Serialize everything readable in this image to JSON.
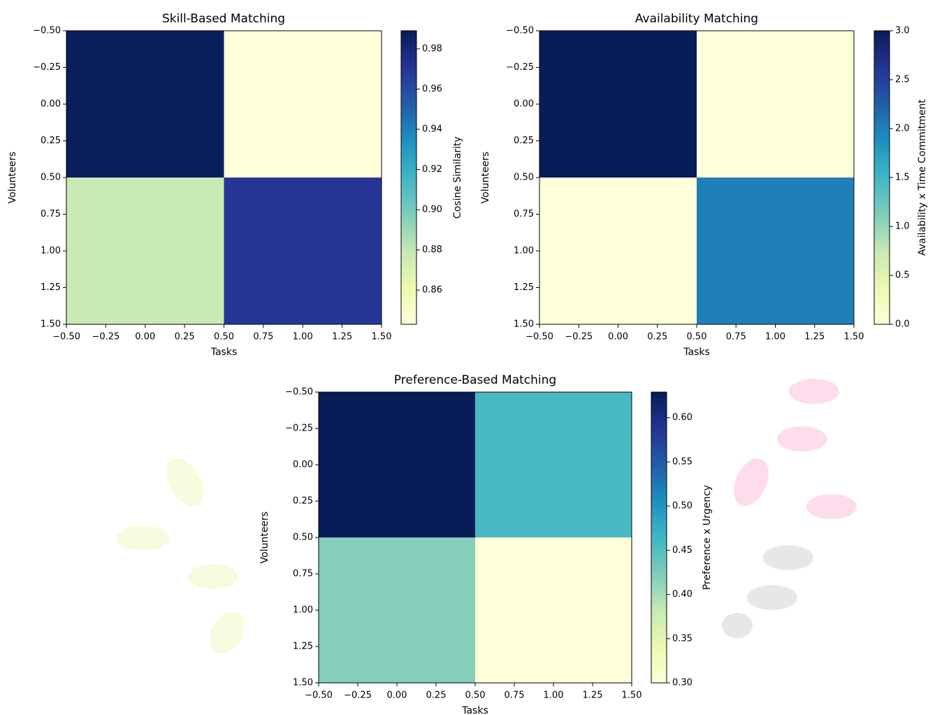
{
  "chart_data": [
    {
      "type": "heatmap",
      "title": "Skill-Based Matching",
      "xlabel": "Tasks",
      "ylabel": "Volunteers",
      "colorbar_label": "Cosine Similarity",
      "cmap": "YlGnBu",
      "z": [
        [
          0.988,
          0.843
        ],
        [
          0.878,
          0.97
        ]
      ],
      "clim": [
        0.843,
        0.989
      ],
      "xlim": [
        -0.5,
        1.5
      ],
      "ylim": [
        1.5,
        -0.5
      ],
      "xticks": [
        {
          "value": -0.5,
          "label": "−0.50"
        },
        {
          "value": -0.25,
          "label": "−0.25"
        },
        {
          "value": 0,
          "label": "0.00"
        },
        0.25,
        {
          "value": 0.5,
          "label": "0.50"
        },
        0.75,
        {
          "value": 1,
          "label": "1.00"
        },
        1.25,
        {
          "value": 1.5,
          "label": "1.50"
        }
      ],
      "yticks": [
        {
          "value": -0.5,
          "label": "−0.50"
        },
        {
          "value": -0.25,
          "label": "−0.25"
        },
        {
          "value": 0,
          "label": "0.00"
        },
        0.25,
        {
          "value": 0.5,
          "label": "0.50"
        },
        0.75,
        {
          "value": 1,
          "label": "1.00"
        },
        1.25,
        {
          "value": 1.5,
          "label": "1.50"
        }
      ],
      "cticks": [
        0.86,
        0.88,
        {
          "value": 0.9,
          "label": "0.90"
        },
        0.92,
        0.94,
        0.96,
        0.98
      ]
    },
    {
      "type": "heatmap",
      "title": "Availability Matching",
      "xlabel": "Tasks",
      "ylabel": "Volunteers",
      "colorbar_label": "Availability x Time Commitment",
      "cmap": "YlGnBu",
      "z": [
        [
          3,
          0
        ],
        [
          0,
          2
        ]
      ],
      "clim": [
        0,
        3
      ],
      "xlim": [
        -0.5,
        1.5
      ],
      "ylim": [
        1.5,
        -0.5
      ],
      "xticks": [
        {
          "value": -0.5,
          "label": "−0.50"
        },
        {
          "value": -0.25,
          "label": "−0.25"
        },
        {
          "value": 0,
          "label": "0.00"
        },
        0.25,
        {
          "value": 0.5,
          "label": "0.50"
        },
        0.75,
        {
          "value": 1,
          "label": "1.00"
        },
        1.25,
        {
          "value": 1.5,
          "label": "1.50"
        }
      ],
      "yticks": [
        {
          "value": -0.5,
          "label": "−0.50"
        },
        {
          "value": -0.25,
          "label": "−0.25"
        },
        {
          "value": 0,
          "label": "0.00"
        },
        0.25,
        {
          "value": 0.5,
          "label": "0.50"
        },
        0.75,
        {
          "value": 1,
          "label": "1.00"
        },
        1.25,
        {
          "value": 1.5,
          "label": "1.50"
        }
      ],
      "cticks": [
        {
          "value": 0,
          "label": "0.0"
        },
        0.5,
        {
          "value": 1,
          "label": "1.0"
        },
        1.5,
        {
          "value": 2,
          "label": "2.0"
        },
        2.5,
        {
          "value": 3,
          "label": "3.0"
        }
      ]
    },
    {
      "type": "heatmap",
      "title": "Preference-Based Matching",
      "xlabel": "Tasks",
      "ylabel": "Volunteers",
      "colorbar_label": "Preference x Urgency",
      "cmap": "YlGnBu",
      "z": [
        [
          0.629,
          0.46
        ],
        [
          0.42,
          0.3
        ]
      ],
      "clim": [
        0.3,
        0.629
      ],
      "xlim": [
        -0.5,
        1.5
      ],
      "ylim": [
        1.5,
        -0.5
      ],
      "xticks": [
        {
          "value": -0.5,
          "label": "−0.50"
        },
        {
          "value": -0.25,
          "label": "−0.25"
        },
        {
          "value": 0,
          "label": "0.00"
        },
        0.25,
        {
          "value": 0.5,
          "label": "0.50"
        },
        0.75,
        {
          "value": 1,
          "label": "1.00"
        },
        1.25,
        {
          "value": 1.5,
          "label": "1.50"
        }
      ],
      "yticks": [
        {
          "value": -0.5,
          "label": "−0.50"
        },
        {
          "value": -0.25,
          "label": "−0.25"
        },
        {
          "value": 0,
          "label": "0.00"
        },
        0.25,
        {
          "value": 0.5,
          "label": "0.50"
        },
        0.75,
        {
          "value": 1,
          "label": "1.00"
        },
        1.25,
        {
          "value": 1.5,
          "label": "1.50"
        }
      ],
      "cticks": [
        {
          "value": 0.3,
          "label": "0.30"
        },
        0.35,
        {
          "value": 0.4,
          "label": "0.40"
        },
        0.45,
        {
          "value": 0.5,
          "label": "0.50"
        },
        0.55,
        {
          "value": 0.6,
          "label": "0.60"
        }
      ]
    }
  ]
}
